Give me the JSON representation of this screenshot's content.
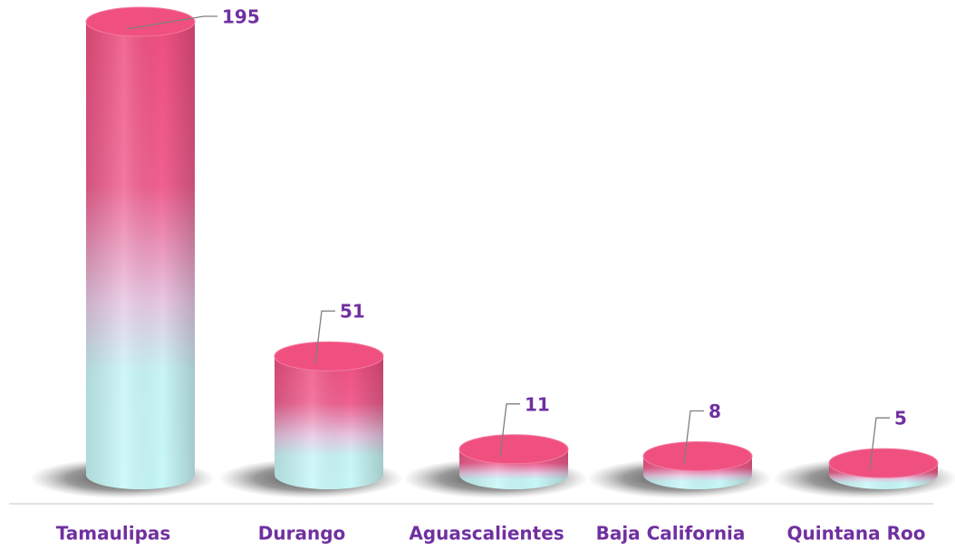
{
  "chart_data": {
    "type": "bar",
    "categories": [
      "Tamaulipas",
      "Durango",
      "Aguascalientes",
      "Baja California",
      "Quintana Roo"
    ],
    "values": [
      195,
      51,
      11,
      8,
      5
    ],
    "color": "#f0507f"
  }
}
